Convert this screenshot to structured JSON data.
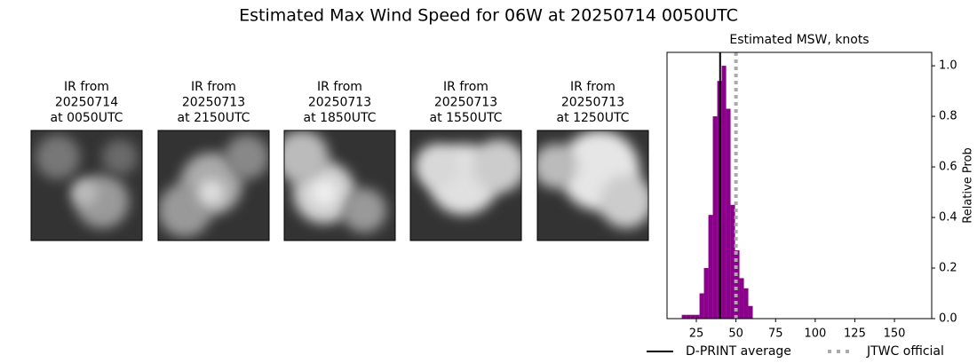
{
  "title": "Estimated Max Wind Speed for 06W at 20250714 0050UTC",
  "panels": [
    {
      "lines": [
        "IR from",
        "20250714",
        "at 0050UTC"
      ]
    },
    {
      "lines": [
        "IR from",
        "20250713",
        "at 2150UTC"
      ]
    },
    {
      "lines": [
        "IR from",
        "20250713",
        "at 1850UTC"
      ]
    },
    {
      "lines": [
        "IR from",
        "20250713",
        "at 1550UTC"
      ]
    },
    {
      "lines": [
        "IR from",
        "20250713",
        "at 1250UTC"
      ]
    }
  ],
  "chart_data": {
    "type": "histogram",
    "title": "Estimated MSW, knots",
    "y_label": "Relative Prob",
    "color": "#8b008b",
    "bins": [
      15.8,
      18.6,
      21.4,
      24.2,
      27.0,
      29.8,
      32.6,
      35.4,
      38.2,
      41.0,
      43.8,
      46.6,
      49.4,
      52.2,
      55.0,
      57.8,
      60.6
    ],
    "values": [
      0.015,
      0.015,
      0.015,
      0.015,
      0.1,
      0.2,
      0.41,
      0.8,
      0.94,
      1.0,
      0.83,
      0.45,
      0.27,
      0.16,
      0.12,
      0.05
    ],
    "xlim": [
      6.5,
      173.5
    ],
    "xticks": [
      25,
      50,
      75,
      100,
      125,
      150
    ],
    "ylim": [
      0,
      1.053
    ],
    "yticks": [
      {
        "value": 0,
        "label": "0.0"
      },
      0.2,
      0.4,
      0.6,
      0.8,
      {
        "value": 1,
        "label": "1.0"
      }
    ],
    "lines": [
      {
        "name": "D-PRINT average",
        "value": 40,
        "color": "#000000",
        "style": "solid"
      },
      {
        "name": "JTWC official",
        "value": 50,
        "color": "#aaaaaa",
        "style": "dotted"
      }
    ]
  }
}
